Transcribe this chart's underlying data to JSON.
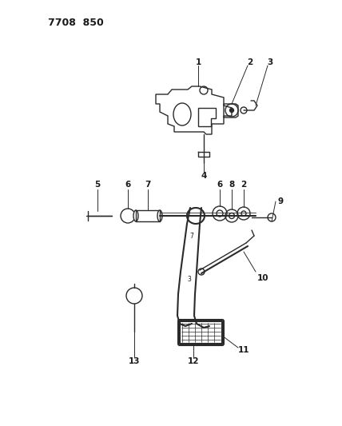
{
  "title": "7708  850",
  "background_color": "#ffffff",
  "line_color": "#2a2a2a",
  "text_color": "#1a1a1a",
  "title_fontsize": 9,
  "label_fontsize": 7.5
}
